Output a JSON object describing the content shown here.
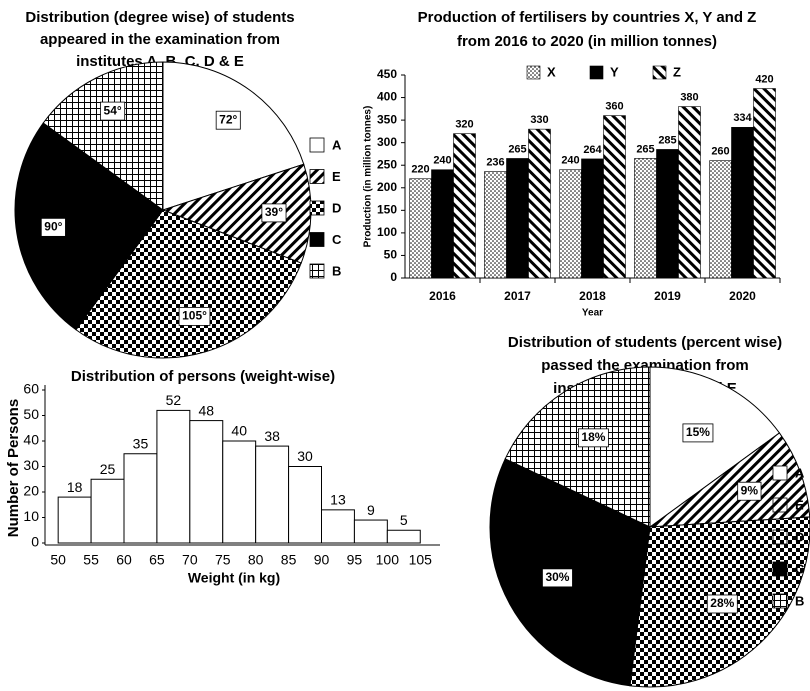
{
  "chart_data": [
    {
      "type": "pie",
      "title": [
        "Distribution (degree wise) of students",
        "appeared in the examination from",
        "institutes A, B, C, D & E"
      ],
      "categories": [
        "A",
        "E",
        "D",
        "C",
        "B"
      ],
      "values": [
        72,
        39,
        105,
        90,
        54
      ],
      "value_labels": [
        "72°",
        "39°",
        "105°",
        "90°",
        "54°"
      ],
      "fills": [
        "white",
        "back-hatch",
        "checker",
        "black",
        "grid"
      ]
    },
    {
      "type": "bar",
      "title": [
        "Production of fertilisers by countries X, Y and Z",
        "from 2016 to 2020 (in million tonnes)"
      ],
      "x_label": "Year",
      "y_label": "Production (in million tonnes)",
      "categories": [
        "2016",
        "2017",
        "2018",
        "2019",
        "2020"
      ],
      "series": [
        {
          "name": "X",
          "fill": "dots",
          "values": [
            220,
            236,
            240,
            265,
            260
          ]
        },
        {
          "name": "Y",
          "fill": "black",
          "values": [
            240,
            265,
            264,
            285,
            334
          ]
        },
        {
          "name": "Z",
          "fill": "fwd-hatch",
          "values": [
            320,
            330,
            360,
            380,
            420
          ]
        }
      ],
      "ylim": [
        0,
        450
      ],
      "yticks": [
        0,
        50,
        100,
        150,
        200,
        250,
        300,
        350,
        400,
        450
      ]
    },
    {
      "type": "histogram",
      "title": [
        "Distribution of persons (weight-wise)"
      ],
      "x_label": "Weight (in kg)",
      "y_label": "Number of Persons",
      "bins": [
        50,
        55,
        60,
        65,
        70,
        75,
        80,
        85,
        90,
        95,
        100,
        105
      ],
      "counts": [
        18,
        25,
        35,
        52,
        48,
        40,
        38,
        30,
        13,
        9,
        5
      ],
      "xlim": [
        48,
        108
      ],
      "xticks": [
        50,
        55,
        60,
        65,
        70,
        75,
        80,
        85,
        90,
        95,
        100,
        105
      ],
      "ylim": [
        0,
        60
      ],
      "yticks": [
        0,
        10,
        20,
        30,
        40,
        50,
        60
      ]
    },
    {
      "type": "pie",
      "title": [
        "Distribution of students (percent wise)",
        "passed the examination from",
        "institutes A, B, C, D and E"
      ],
      "categories": [
        "A",
        "E",
        "D",
        "C",
        "B"
      ],
      "values": [
        15,
        9,
        28,
        30,
        18
      ],
      "value_labels": [
        "15%",
        "9%",
        "28%",
        "30%",
        "18%"
      ],
      "fills": [
        "white",
        "back-hatch",
        "checker",
        "black",
        "grid"
      ]
    }
  ]
}
